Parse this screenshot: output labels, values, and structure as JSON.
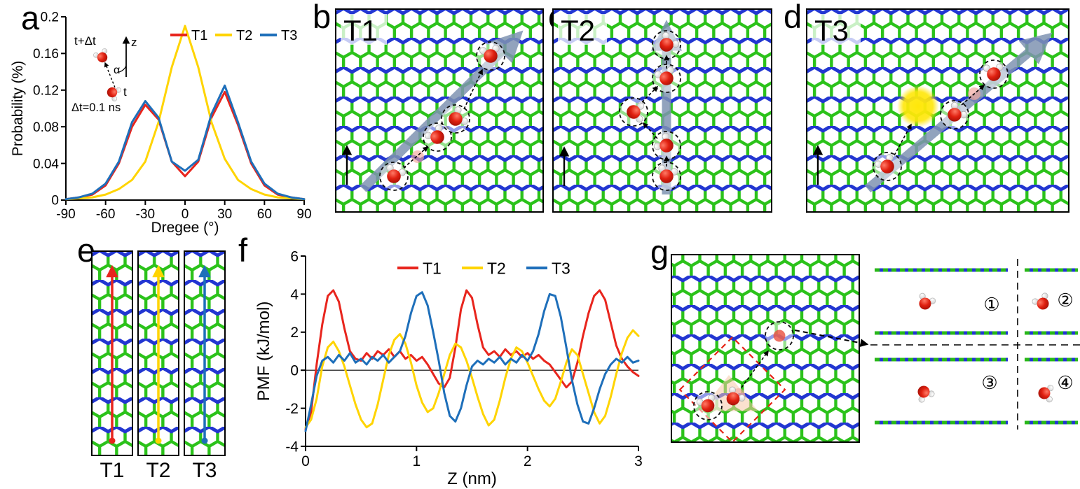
{
  "figure": {
    "panels": {
      "a": {
        "label": "a",
        "inset": {
          "t_plus_dt": "t+Δt",
          "z_label": "z",
          "alpha_label": "α",
          "t_label": "t",
          "dt_label": "Δt=0.1 ns"
        }
      },
      "b": {
        "label": "b",
        "tag": "T1"
      },
      "c": {
        "label": "c",
        "tag": "T2"
      },
      "d": {
        "label": "d",
        "tag": "T3"
      },
      "e": {
        "label": "e",
        "strips": [
          {
            "tag": "T1",
            "color": "#e8251d"
          },
          {
            "tag": "T2",
            "color": "#ffd400"
          },
          {
            "tag": "T3",
            "color": "#1e6fba"
          }
        ]
      },
      "f": {
        "label": "f"
      },
      "g": {
        "label": "g",
        "config_labels": [
          "①",
          "②",
          "③",
          "④"
        ]
      }
    },
    "colors": {
      "lattice_green": "#2bc21a",
      "lattice_blue": "#2236d1",
      "water_oxygen_red": "#e02010",
      "path_arrow_gray": "#7f93b2",
      "highlight_yellow": "#ffe70a",
      "t1_red": "#e8251d",
      "t2_yellow": "#ffd400",
      "t3_blue": "#1e6fba"
    }
  },
  "chart_data": [
    {
      "id": "chart-a",
      "type": "line",
      "title": "",
      "xlabel": "Dregee (°)",
      "ylabel": "Probability (%)",
      "xlim": [
        -90,
        90
      ],
      "ylim": [
        0,
        0.2
      ],
      "xticks": [
        -90,
        -60,
        -30,
        0,
        30,
        60,
        90
      ],
      "xtick_labels": [
        "-90",
        "-60",
        "-30",
        "0",
        "30",
        "60",
        "90"
      ],
      "yticks": [
        0,
        0.04,
        0.08,
        0.12,
        0.16,
        0.2
      ],
      "ytick_labels": [
        "0",
        "0.04",
        "0.08",
        "0.12",
        "0.16",
        "0.2"
      ],
      "grid": false,
      "legend_position": "top-right",
      "x": [
        -90,
        -80,
        -70,
        -60,
        -50,
        -40,
        -30,
        -20,
        -10,
        0,
        10,
        20,
        30,
        40,
        50,
        60,
        70,
        80,
        90
      ],
      "series": [
        {
          "name": "T1",
          "color": "#e8251d",
          "values": [
            0.001,
            0.003,
            0.006,
            0.016,
            0.04,
            0.08,
            0.104,
            0.088,
            0.042,
            0.026,
            0.042,
            0.09,
            0.118,
            0.082,
            0.04,
            0.016,
            0.006,
            0.003,
            0.001
          ]
        },
        {
          "name": "T2",
          "color": "#ffd400",
          "values": [
            0.001,
            0.002,
            0.003,
            0.006,
            0.012,
            0.022,
            0.042,
            0.085,
            0.145,
            0.19,
            0.145,
            0.085,
            0.045,
            0.022,
            0.012,
            0.006,
            0.003,
            0.002,
            0.001
          ]
        },
        {
          "name": "T3",
          "color": "#1e6fba",
          "values": [
            0.001,
            0.003,
            0.007,
            0.018,
            0.042,
            0.085,
            0.108,
            0.09,
            0.042,
            0.032,
            0.044,
            0.094,
            0.125,
            0.085,
            0.042,
            0.018,
            0.007,
            0.003,
            0.001
          ]
        }
      ]
    },
    {
      "id": "chart-f",
      "type": "line",
      "title": "",
      "xlabel": "Z (nm)",
      "ylabel": "PMF (kJ/mol)",
      "xlim": [
        0,
        3
      ],
      "ylim": [
        -4,
        6
      ],
      "xticks": [
        0,
        1,
        2,
        3
      ],
      "xtick_labels": [
        "0",
        "1",
        "2",
        "3"
      ],
      "yticks": [
        -4,
        -2,
        0,
        2,
        4,
        6
      ],
      "ytick_labels": [
        "-4",
        "-2",
        "0",
        "2",
        "4",
        "6"
      ],
      "grid": false,
      "legend_position": "top-center",
      "zero_line": true,
      "x": [
        0,
        0.05,
        0.1,
        0.15,
        0.2,
        0.25,
        0.3,
        0.35,
        0.4,
        0.45,
        0.5,
        0.55,
        0.6,
        0.65,
        0.7,
        0.75,
        0.8,
        0.85,
        0.9,
        0.95,
        1,
        1.05,
        1.1,
        1.15,
        1.2,
        1.25,
        1.3,
        1.35,
        1.4,
        1.45,
        1.5,
        1.55,
        1.6,
        1.65,
        1.7,
        1.75,
        1.8,
        1.85,
        1.9,
        1.95,
        2,
        2.05,
        2.1,
        2.15,
        2.2,
        2.25,
        2.3,
        2.35,
        2.4,
        2.45,
        2.5,
        2.55,
        2.6,
        2.65,
        2.7,
        2.75,
        2.8,
        2.85,
        2.9,
        2.95,
        3
      ],
      "series": [
        {
          "name": "T1",
          "color": "#e8251d",
          "values": [
            -3.1,
            -2.2,
            0.3,
            2.4,
            3.9,
            4.2,
            3.6,
            2.2,
            1.0,
            0.6,
            0.5,
            0.9,
            0.6,
            1.0,
            0.8,
            1.1,
            0.7,
            1.0,
            0.6,
            0.8,
            0.5,
            0.7,
            0.3,
            -0.2,
            -0.7,
            -0.9,
            -0.4,
            1.2,
            3.2,
            4.2,
            3.8,
            2.4,
            1.2,
            0.8,
            1.0,
            0.7,
            1.1,
            0.8,
            1.0,
            0.7,
            0.9,
            0.6,
            0.8,
            0.5,
            0.3,
            -0.1,
            -0.5,
            -0.9,
            -0.6,
            0.4,
            1.8,
            3.0,
            3.9,
            4.2,
            3.7,
            2.5,
            1.3,
            0.6,
            0.2,
            -0.1,
            -0.3
          ]
        },
        {
          "name": "T2",
          "color": "#ffd400",
          "values": [
            -3.0,
            -2.6,
            -1.5,
            0.2,
            1.2,
            1.5,
            1.0,
            0.2,
            -0.8,
            -1.8,
            -2.6,
            -3.0,
            -2.8,
            -1.8,
            -0.5,
            0.8,
            1.6,
            1.9,
            1.4,
            0.4,
            -0.8,
            -1.7,
            -2.2,
            -2.0,
            -1.2,
            -0.2,
            0.8,
            1.4,
            1.2,
            0.5,
            -0.4,
            -1.4,
            -2.3,
            -2.9,
            -2.6,
            -1.6,
            -0.4,
            0.6,
            1.2,
            1.0,
            0.4,
            -0.3,
            -1.0,
            -1.6,
            -1.9,
            -1.5,
            -0.6,
            0.4,
            1.1,
            0.8,
            -0.2,
            -1.2,
            -2.2,
            -2.8,
            -2.4,
            -1.4,
            -0.2,
            0.9,
            1.7,
            2.1,
            1.8
          ]
        },
        {
          "name": "T3",
          "color": "#1e6fba",
          "values": [
            -3.2,
            -1.8,
            -0.3,
            0.5,
            0.7,
            0.4,
            0.8,
            0.5,
            0.9,
            0.4,
            0.6,
            0.3,
            0.7,
            0.5,
            0.8,
            0.4,
            0.7,
            1.0,
            1.8,
            3.0,
            3.9,
            4.1,
            3.4,
            2.0,
            0.5,
            -1.2,
            -2.4,
            -2.7,
            -2.0,
            -0.8,
            0.2,
            0.5,
            0.3,
            0.6,
            0.4,
            0.7,
            0.3,
            0.6,
            0.4,
            0.8,
            0.5,
            1.0,
            1.9,
            3.1,
            4.0,
            3.9,
            2.8,
            1.2,
            -0.5,
            -1.8,
            -2.7,
            -2.8,
            -2.0,
            -1.0,
            -0.2,
            0.3,
            0.6,
            0.4,
            0.7,
            0.4,
            0.5
          ]
        }
      ]
    }
  ]
}
